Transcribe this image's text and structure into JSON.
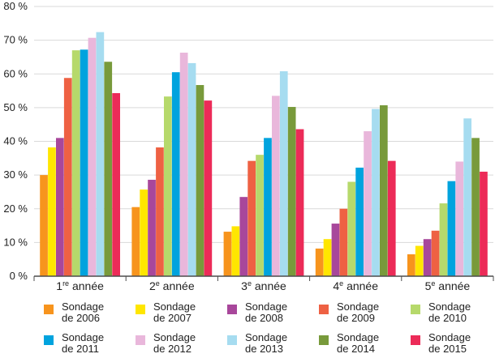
{
  "chart_data": {
    "type": "bar",
    "ylim": [
      0,
      80
    ],
    "ytick_labels": [
      "0 %",
      "10 %",
      "20 %",
      "30 %",
      "40 %",
      "50 %",
      "60 %",
      "70 %",
      "80 %"
    ],
    "ytick_values": [
      0,
      10,
      20,
      30,
      40,
      50,
      60,
      70,
      80
    ],
    "categories": [
      {
        "num": "1",
        "sup": "re",
        "word": " année"
      },
      {
        "num": "2",
        "sup": "e",
        "word": " année"
      },
      {
        "num": "3",
        "sup": "e",
        "word": " année"
      },
      {
        "num": "4",
        "sup": "e",
        "word": " année"
      },
      {
        "num": "5",
        "sup": "e",
        "word": " année"
      }
    ],
    "grid": true,
    "legend_position": "bottom",
    "series": [
      {
        "name": "Sondage de 2006",
        "line1": "Sondage",
        "line2": "de 2006",
        "color": "#F7941D",
        "values": [
          30,
          20.5,
          13.2,
          8.2,
          6.5
        ]
      },
      {
        "name": "Sondage de 2007",
        "line1": "Sondage",
        "line2": "de 2007",
        "color": "#FFE600",
        "values": [
          38.2,
          25.7,
          14.8,
          11,
          9
        ]
      },
      {
        "name": "Sondage de 2008",
        "line1": "Sondage",
        "line2": "de 2008",
        "color": "#A8479B",
        "values": [
          41,
          28.6,
          23.5,
          15.6,
          11
        ]
      },
      {
        "name": "Sondage de 2009",
        "line1": "Sondage",
        "line2": "de 2009",
        "color": "#EE6143",
        "values": [
          58.8,
          38.2,
          34.2,
          20,
          13.5
        ]
      },
      {
        "name": "Sondage de 2010",
        "line1": "Sondage",
        "line2": "de 2010",
        "color": "#B6D96B",
        "values": [
          67,
          53.3,
          36,
          28,
          21.6
        ]
      },
      {
        "name": "Sondage de 2011",
        "line1": "Sondage",
        "line2": "de 2011",
        "color": "#00A3DE",
        "values": [
          67.2,
          60.5,
          41,
          32.2,
          28.2
        ]
      },
      {
        "name": "Sondage de 2012",
        "line1": "Sondage",
        "line2": "de 2012",
        "color": "#E9B7DB",
        "values": [
          70.7,
          66.3,
          53.5,
          43,
          34
        ]
      },
      {
        "name": "Sondage de 2013",
        "line1": "Sondage",
        "line2": "de 2013",
        "color": "#A6DCF0",
        "values": [
          72.4,
          63.2,
          60.8,
          49.6,
          46.8
        ]
      },
      {
        "name": "Sondage de 2014",
        "line1": "Sondage",
        "line2": "de 2014",
        "color": "#789A3B",
        "values": [
          63.6,
          56.7,
          50.2,
          50.7,
          41
        ]
      },
      {
        "name": "Sondage de 2015",
        "line1": "Sondage",
        "line2": "de 2015",
        "color": "#EC2B58",
        "values": [
          54.3,
          52.1,
          43.6,
          34.2,
          31
        ]
      }
    ]
  }
}
